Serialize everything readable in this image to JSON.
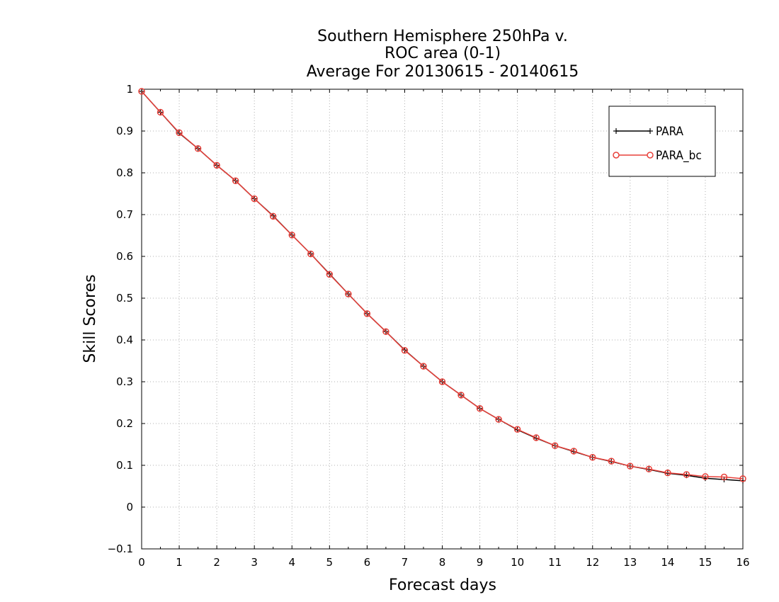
{
  "chart_data": {
    "type": "line",
    "title": [
      "Southern Hemisphere 250hPa v.",
      "ROC area (0-1)",
      "Average For 20130615 - 20140615"
    ],
    "xlabel": "Forecast days",
    "ylabel": "Skill Scores",
    "xlim": [
      0,
      16
    ],
    "ylim": [
      -0.1,
      1
    ],
    "x_ticks": [
      0,
      1,
      2,
      3,
      4,
      5,
      6,
      7,
      8,
      9,
      10,
      11,
      12,
      13,
      14,
      15,
      16
    ],
    "y_ticks": [
      -0.1,
      0,
      0.1,
      0.2,
      0.3,
      0.4,
      0.5,
      0.6,
      0.7,
      0.8,
      0.9,
      1
    ],
    "y_tick_labels": [
      "−0.1",
      "0",
      "0.1",
      "0.2",
      "0.3",
      "0.4",
      "0.5",
      "0.6",
      "0.7",
      "0.8",
      "0.9",
      "1"
    ],
    "grid": true,
    "legend_position": "top-right",
    "x": [
      0,
      0.5,
      1,
      1.5,
      2,
      2.5,
      3,
      3.5,
      4,
      4.5,
      5,
      5.5,
      6,
      6.5,
      7,
      7.5,
      8,
      8.5,
      9,
      9.5,
      10,
      10.5,
      11,
      11.5,
      12,
      12.5,
      13,
      13.5,
      14,
      14.5,
      15,
      15.5,
      16
    ],
    "series": [
      {
        "name": "PARA",
        "color": "#000000",
        "marker": "plus",
        "values": [
          0.995,
          0.945,
          0.895,
          0.858,
          0.818,
          0.781,
          0.738,
          0.697,
          0.651,
          0.606,
          0.558,
          0.51,
          0.463,
          0.42,
          0.376,
          0.337,
          0.3,
          0.268,
          0.236,
          0.21,
          0.185,
          0.165,
          0.147,
          0.133,
          0.119,
          0.109,
          0.098,
          0.09,
          0.081,
          0.076,
          0.069,
          0.066,
          0.063
        ]
      },
      {
        "name": "PARA_bc",
        "color": "#e8403a",
        "marker": "circle",
        "values": [
          0.995,
          0.945,
          0.896,
          0.858,
          0.818,
          0.781,
          0.738,
          0.696,
          0.651,
          0.606,
          0.557,
          0.51,
          0.463,
          0.42,
          0.375,
          0.337,
          0.3,
          0.268,
          0.236,
          0.21,
          0.186,
          0.166,
          0.147,
          0.134,
          0.119,
          0.11,
          0.098,
          0.091,
          0.082,
          0.078,
          0.073,
          0.072,
          0.068
        ]
      }
    ]
  }
}
